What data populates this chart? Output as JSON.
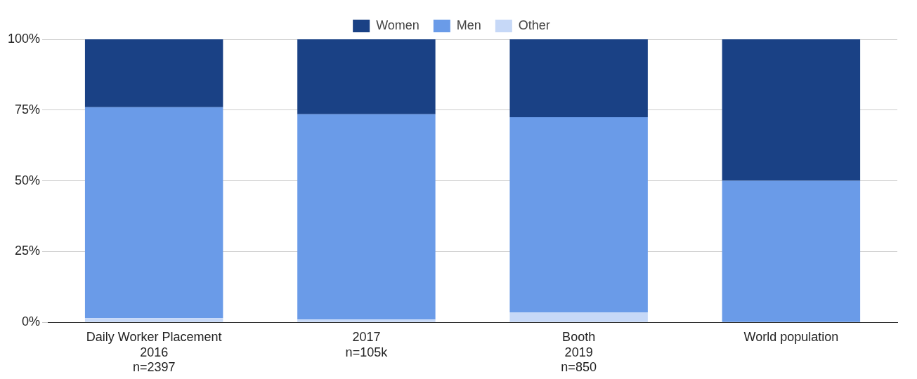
{
  "chart_data": {
    "type": "bar",
    "stacked": true,
    "categories": [
      "Daily Worker Placement\n2016\nn=2397",
      "2017\nn=105k",
      "Booth\n2019\nn=850",
      "World population"
    ],
    "series": [
      {
        "name": "Other",
        "color": "#c6d8f7",
        "values": [
          1.5,
          1,
          3.5,
          0
        ]
      },
      {
        "name": "Men",
        "color": "#6a9be8",
        "values": [
          74.5,
          72.5,
          69,
          50
        ]
      },
      {
        "name": "Women",
        "color": "#1a4185",
        "values": [
          24,
          26.5,
          27.5,
          50
        ]
      }
    ],
    "ylim": [
      0,
      100
    ],
    "yticks": [
      {
        "value": 0,
        "label": "0%"
      },
      {
        "value": 25,
        "label": "25%"
      },
      {
        "value": 50,
        "label": "50%"
      },
      {
        "value": 75,
        "label": "75%"
      },
      {
        "value": 100,
        "label": "100%"
      }
    ],
    "grid": "y",
    "legend": "top"
  }
}
